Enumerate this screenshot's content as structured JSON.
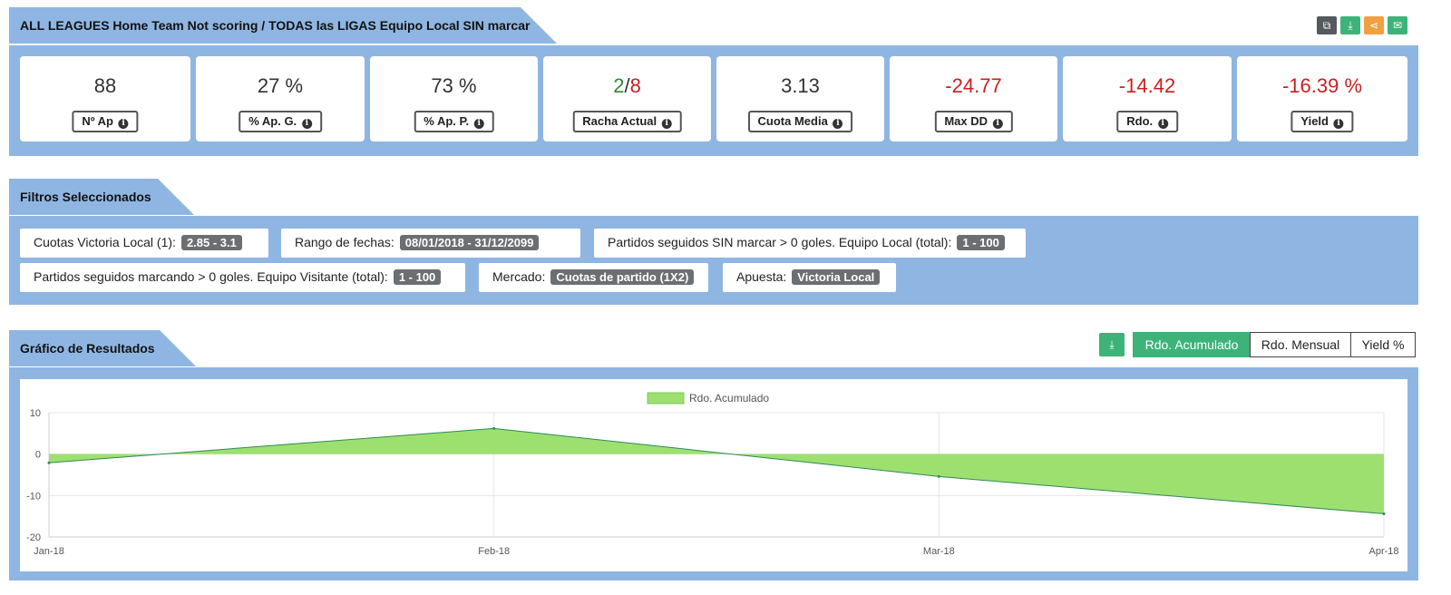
{
  "header": {
    "title": "ALL LEAGUES Home Team Not scoring / TODAS las LIGAS Equipo Local SIN marcar",
    "actions": [
      {
        "icon": "copy-icon",
        "glyph": "⧉",
        "color": "#555a5e"
      },
      {
        "icon": "download-icon",
        "glyph": "⤓",
        "color": "#3db37a"
      },
      {
        "icon": "share-icon",
        "glyph": "<",
        "color": "#f0a040"
      },
      {
        "icon": "email-icon",
        "glyph": "✉",
        "color": "#3db37a"
      }
    ]
  },
  "stats": [
    {
      "value": "88",
      "label": "Nº Ap"
    },
    {
      "value": "27 %",
      "label": "% Ap. G."
    },
    {
      "value": "73 %",
      "label": "% Ap. P."
    },
    {
      "value_a": "2",
      "value_sep": "/",
      "value_b": "8",
      "label": "Racha Actual"
    },
    {
      "value": "3.13",
      "label": "Cuota Media"
    },
    {
      "value": "-24.77",
      "label": "Max DD"
    },
    {
      "value": "-14.42",
      "label": "Rdo."
    },
    {
      "value": "-16.39 %",
      "label": "Yield"
    }
  ],
  "filters": {
    "title": "Filtros Seleccionados",
    "items": [
      {
        "label": "Cuotas Victoria Local (1):",
        "value": "2.85 - 3.1"
      },
      {
        "label": "Rango de fechas:",
        "value": "08/01/2018 - 31/12/2099"
      },
      {
        "label": "Partidos seguidos SIN marcar > 0 goles. Equipo Local (total):",
        "value": "1 - 100"
      },
      {
        "label": "Partidos seguidos marcando > 0 goles. Equipo Visitante (total):",
        "value": "1 - 100"
      },
      {
        "label": "Mercado:",
        "value": "Cuotas de partido (1X2)"
      },
      {
        "label": "Apuesta:",
        "value": "Victoria Local"
      }
    ]
  },
  "chart_section": {
    "title": "Gráfico de Resultados",
    "tabs": [
      "Rdo. Acumulado",
      "Rdo. Mensual",
      "Yield %"
    ],
    "active_tab": "Rdo. Acumulado"
  },
  "chart_data": {
    "type": "area",
    "series": [
      {
        "name": "Rdo. Acumulado",
        "color": "#9de070",
        "line_color": "#2e8b57",
        "x": [
          "Jan-18",
          "Feb-18",
          "Mar-18",
          "Apr-18"
        ],
        "values": [
          -2.1,
          6.2,
          -5.4,
          -14.42
        ]
      }
    ],
    "categories": [
      "Jan-18",
      "Feb-18",
      "Mar-18",
      "Apr-18"
    ],
    "yticks": [
      10,
      0,
      -10,
      -20
    ],
    "ylim": [
      -20,
      10
    ],
    "grid": true,
    "legend": "top-center"
  }
}
